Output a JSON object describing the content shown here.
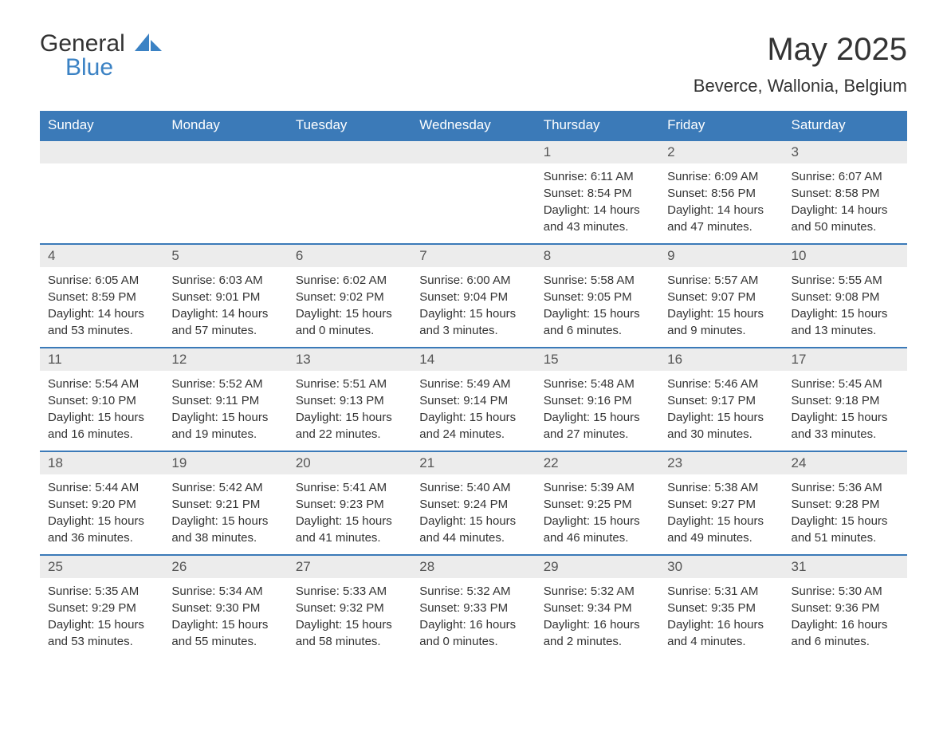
{
  "brand": {
    "word1": "General",
    "word2": "Blue",
    "general_color": "#333333",
    "blue_color": "#3b82c4",
    "sail_color": "#3b82c4"
  },
  "title": "May 2025",
  "location": "Beverce, Wallonia, Belgium",
  "colors": {
    "header_bg": "#3b7ab8",
    "header_text": "#ffffff",
    "daynum_bg": "#ececec",
    "daynum_text": "#555555",
    "body_text": "#333333",
    "row_border": "#3b7ab8",
    "page_bg": "#ffffff"
  },
  "fonts": {
    "title_size_pt": 30,
    "location_size_pt": 17,
    "weekday_size_pt": 13,
    "daynum_size_pt": 13,
    "body_size_pt": 11
  },
  "weekdays": [
    "Sunday",
    "Monday",
    "Tuesday",
    "Wednesday",
    "Thursday",
    "Friday",
    "Saturday"
  ],
  "weeks": [
    [
      {
        "n": "",
        "sunrise": "",
        "sunset": "",
        "daylight": ""
      },
      {
        "n": "",
        "sunrise": "",
        "sunset": "",
        "daylight": ""
      },
      {
        "n": "",
        "sunrise": "",
        "sunset": "",
        "daylight": ""
      },
      {
        "n": "",
        "sunrise": "",
        "sunset": "",
        "daylight": ""
      },
      {
        "n": "1",
        "sunrise": "Sunrise: 6:11 AM",
        "sunset": "Sunset: 8:54 PM",
        "daylight": "Daylight: 14 hours and 43 minutes."
      },
      {
        "n": "2",
        "sunrise": "Sunrise: 6:09 AM",
        "sunset": "Sunset: 8:56 PM",
        "daylight": "Daylight: 14 hours and 47 minutes."
      },
      {
        "n": "3",
        "sunrise": "Sunrise: 6:07 AM",
        "sunset": "Sunset: 8:58 PM",
        "daylight": "Daylight: 14 hours and 50 minutes."
      }
    ],
    [
      {
        "n": "4",
        "sunrise": "Sunrise: 6:05 AM",
        "sunset": "Sunset: 8:59 PM",
        "daylight": "Daylight: 14 hours and 53 minutes."
      },
      {
        "n": "5",
        "sunrise": "Sunrise: 6:03 AM",
        "sunset": "Sunset: 9:01 PM",
        "daylight": "Daylight: 14 hours and 57 minutes."
      },
      {
        "n": "6",
        "sunrise": "Sunrise: 6:02 AM",
        "sunset": "Sunset: 9:02 PM",
        "daylight": "Daylight: 15 hours and 0 minutes."
      },
      {
        "n": "7",
        "sunrise": "Sunrise: 6:00 AM",
        "sunset": "Sunset: 9:04 PM",
        "daylight": "Daylight: 15 hours and 3 minutes."
      },
      {
        "n": "8",
        "sunrise": "Sunrise: 5:58 AM",
        "sunset": "Sunset: 9:05 PM",
        "daylight": "Daylight: 15 hours and 6 minutes."
      },
      {
        "n": "9",
        "sunrise": "Sunrise: 5:57 AM",
        "sunset": "Sunset: 9:07 PM",
        "daylight": "Daylight: 15 hours and 9 minutes."
      },
      {
        "n": "10",
        "sunrise": "Sunrise: 5:55 AM",
        "sunset": "Sunset: 9:08 PM",
        "daylight": "Daylight: 15 hours and 13 minutes."
      }
    ],
    [
      {
        "n": "11",
        "sunrise": "Sunrise: 5:54 AM",
        "sunset": "Sunset: 9:10 PM",
        "daylight": "Daylight: 15 hours and 16 minutes."
      },
      {
        "n": "12",
        "sunrise": "Sunrise: 5:52 AM",
        "sunset": "Sunset: 9:11 PM",
        "daylight": "Daylight: 15 hours and 19 minutes."
      },
      {
        "n": "13",
        "sunrise": "Sunrise: 5:51 AM",
        "sunset": "Sunset: 9:13 PM",
        "daylight": "Daylight: 15 hours and 22 minutes."
      },
      {
        "n": "14",
        "sunrise": "Sunrise: 5:49 AM",
        "sunset": "Sunset: 9:14 PM",
        "daylight": "Daylight: 15 hours and 24 minutes."
      },
      {
        "n": "15",
        "sunrise": "Sunrise: 5:48 AM",
        "sunset": "Sunset: 9:16 PM",
        "daylight": "Daylight: 15 hours and 27 minutes."
      },
      {
        "n": "16",
        "sunrise": "Sunrise: 5:46 AM",
        "sunset": "Sunset: 9:17 PM",
        "daylight": "Daylight: 15 hours and 30 minutes."
      },
      {
        "n": "17",
        "sunrise": "Sunrise: 5:45 AM",
        "sunset": "Sunset: 9:18 PM",
        "daylight": "Daylight: 15 hours and 33 minutes."
      }
    ],
    [
      {
        "n": "18",
        "sunrise": "Sunrise: 5:44 AM",
        "sunset": "Sunset: 9:20 PM",
        "daylight": "Daylight: 15 hours and 36 minutes."
      },
      {
        "n": "19",
        "sunrise": "Sunrise: 5:42 AM",
        "sunset": "Sunset: 9:21 PM",
        "daylight": "Daylight: 15 hours and 38 minutes."
      },
      {
        "n": "20",
        "sunrise": "Sunrise: 5:41 AM",
        "sunset": "Sunset: 9:23 PM",
        "daylight": "Daylight: 15 hours and 41 minutes."
      },
      {
        "n": "21",
        "sunrise": "Sunrise: 5:40 AM",
        "sunset": "Sunset: 9:24 PM",
        "daylight": "Daylight: 15 hours and 44 minutes."
      },
      {
        "n": "22",
        "sunrise": "Sunrise: 5:39 AM",
        "sunset": "Sunset: 9:25 PM",
        "daylight": "Daylight: 15 hours and 46 minutes."
      },
      {
        "n": "23",
        "sunrise": "Sunrise: 5:38 AM",
        "sunset": "Sunset: 9:27 PM",
        "daylight": "Daylight: 15 hours and 49 minutes."
      },
      {
        "n": "24",
        "sunrise": "Sunrise: 5:36 AM",
        "sunset": "Sunset: 9:28 PM",
        "daylight": "Daylight: 15 hours and 51 minutes."
      }
    ],
    [
      {
        "n": "25",
        "sunrise": "Sunrise: 5:35 AM",
        "sunset": "Sunset: 9:29 PM",
        "daylight": "Daylight: 15 hours and 53 minutes."
      },
      {
        "n": "26",
        "sunrise": "Sunrise: 5:34 AM",
        "sunset": "Sunset: 9:30 PM",
        "daylight": "Daylight: 15 hours and 55 minutes."
      },
      {
        "n": "27",
        "sunrise": "Sunrise: 5:33 AM",
        "sunset": "Sunset: 9:32 PM",
        "daylight": "Daylight: 15 hours and 58 minutes."
      },
      {
        "n": "28",
        "sunrise": "Sunrise: 5:32 AM",
        "sunset": "Sunset: 9:33 PM",
        "daylight": "Daylight: 16 hours and 0 minutes."
      },
      {
        "n": "29",
        "sunrise": "Sunrise: 5:32 AM",
        "sunset": "Sunset: 9:34 PM",
        "daylight": "Daylight: 16 hours and 2 minutes."
      },
      {
        "n": "30",
        "sunrise": "Sunrise: 5:31 AM",
        "sunset": "Sunset: 9:35 PM",
        "daylight": "Daylight: 16 hours and 4 minutes."
      },
      {
        "n": "31",
        "sunrise": "Sunrise: 5:30 AM",
        "sunset": "Sunset: 9:36 PM",
        "daylight": "Daylight: 16 hours and 6 minutes."
      }
    ]
  ]
}
